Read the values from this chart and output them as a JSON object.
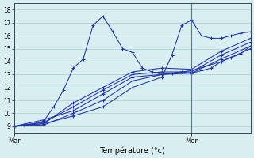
{
  "xlabel": "Température (°c)",
  "ylim": [
    8.5,
    18.5
  ],
  "xlim": [
    0,
    24
  ],
  "yticks": [
    9,
    10,
    11,
    12,
    13,
    14,
    15,
    16,
    17,
    18
  ],
  "xtick_labels": [
    "Mar",
    "Mer"
  ],
  "xtick_positions": [
    0,
    18
  ],
  "vline_x": 18,
  "bg_color": "#d8eef0",
  "grid_color": "#aacccc",
  "line_color": "#2233aa",
  "series": [
    {
      "x": [
        0,
        1,
        2,
        3,
        4,
        5,
        6,
        7,
        8,
        9,
        10,
        11,
        12,
        13,
        14,
        15,
        16,
        17,
        18,
        19,
        20,
        21,
        22,
        23,
        24
      ],
      "y": [
        9.0,
        9.1,
        9.2,
        9.4,
        10.5,
        11.8,
        13.5,
        14.2,
        16.8,
        17.5,
        16.3,
        15.0,
        14.7,
        13.5,
        13.2,
        13.0,
        13.1,
        13.2,
        13.1,
        13.3,
        13.5,
        14.0,
        14.3,
        14.6,
        15.2
      ]
    },
    {
      "x": [
        0,
        3,
        6,
        9,
        12,
        15,
        18,
        21,
        24
      ],
      "y": [
        9.0,
        9.5,
        10.2,
        11.5,
        12.8,
        13.0,
        13.1,
        14.2,
        15.2
      ]
    },
    {
      "x": [
        0,
        3,
        6,
        9,
        12,
        15,
        18,
        21,
        24
      ],
      "y": [
        9.0,
        9.3,
        10.5,
        11.8,
        13.0,
        13.2,
        13.2,
        14.5,
        15.5
      ]
    },
    {
      "x": [
        0,
        3,
        6,
        9,
        12,
        15,
        18,
        21,
        24
      ],
      "y": [
        9.0,
        9.2,
        10.8,
        12.0,
        13.2,
        13.5,
        13.4,
        14.8,
        15.8
      ]
    },
    {
      "x": [
        0,
        3,
        6,
        9,
        12,
        15,
        18,
        21,
        24
      ],
      "y": [
        9.0,
        9.1,
        10.0,
        11.0,
        12.5,
        13.0,
        13.3,
        14.0,
        15.0
      ]
    },
    {
      "x": [
        0,
        3,
        6,
        9,
        12,
        15,
        16,
        17,
        18,
        19,
        20,
        21,
        22,
        23,
        24
      ],
      "y": [
        9.0,
        9.2,
        9.8,
        10.5,
        12.0,
        12.8,
        14.5,
        16.8,
        17.2,
        16.0,
        15.8,
        15.8,
        16.0,
        16.2,
        16.3
      ]
    }
  ]
}
